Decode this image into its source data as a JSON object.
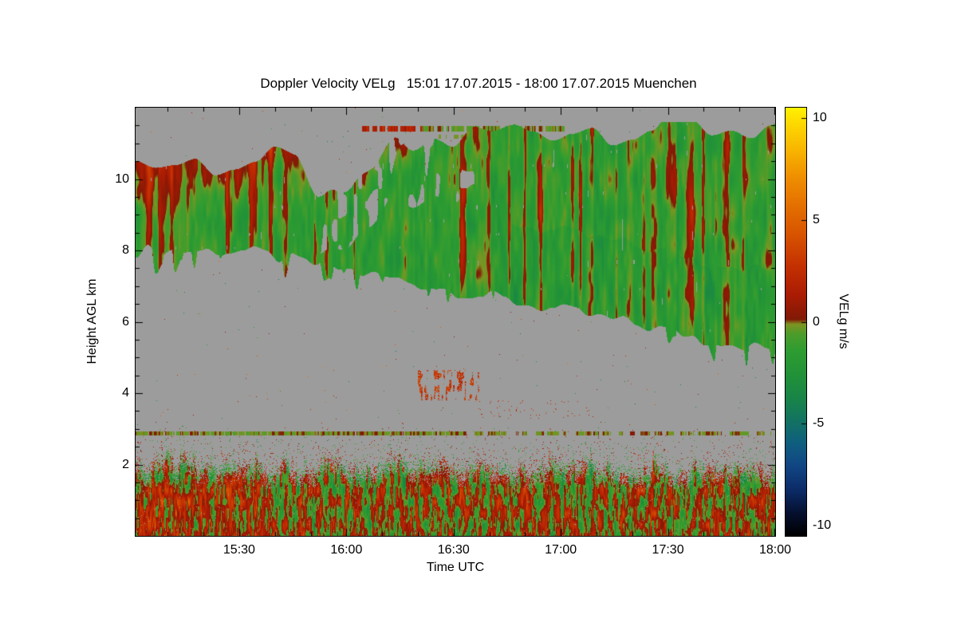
{
  "window": {
    "background": "#ffffff"
  },
  "chart_data": {
    "type": "heatmap",
    "title": "Doppler Velocity VELg   15:01 17.07.2015 - 18:00 17.07.2015 Muenchen",
    "site": "Muenchen",
    "date": "17.07.2015",
    "time_start": "15:01",
    "time_end": "18:00",
    "xlabel": "Time UTC",
    "ylabel": "Height AGL km",
    "x_start_min": 901,
    "x_end_min": 1080,
    "x_ticks": [
      {
        "label": "15:30",
        "minutes": 930
      },
      {
        "label": "16:00",
        "minutes": 960
      },
      {
        "label": "16:30",
        "minutes": 990
      },
      {
        "label": "17:00",
        "minutes": 1020
      },
      {
        "label": "17:30",
        "minutes": 1050
      },
      {
        "label": "18:00",
        "minutes": 1080
      }
    ],
    "y_range": [
      0,
      12
    ],
    "y_ticks": [
      2,
      4,
      6,
      8,
      10
    ],
    "no_data_color": "#9c9c9c",
    "colorbar": {
      "label": "VELg m/s",
      "range": [
        -10.5,
        10.5
      ],
      "ticks": [
        10,
        5,
        0,
        -5,
        -10
      ],
      "stops": [
        [
          -10.5,
          "#000000"
        ],
        [
          -9.4,
          "#05102e"
        ],
        [
          -8.3,
          "#0b2a66"
        ],
        [
          -7.1,
          "#114583"
        ],
        [
          -6.0,
          "#0f5d80"
        ],
        [
          -4.9,
          "#127263"
        ],
        [
          -3.8,
          "#188449"
        ],
        [
          -2.6,
          "#219238"
        ],
        [
          -1.4,
          "#2e9c31"
        ],
        [
          -0.6,
          "#4d9c2a"
        ],
        [
          -0.12,
          "#7e9422"
        ],
        [
          0.12,
          "#801a06"
        ],
        [
          1.3,
          "#aa1b04"
        ],
        [
          2.7,
          "#c33002"
        ],
        [
          4.2,
          "#d75200"
        ],
        [
          5.8,
          "#e57200"
        ],
        [
          7.2,
          "#f09200"
        ],
        [
          8.6,
          "#f9ba00"
        ],
        [
          9.7,
          "#fdd800"
        ],
        [
          10.5,
          "#fff200"
        ]
      ]
    },
    "features": {
      "cloud_band": {
        "description": "Descending mid/upper-level cloud layer; mostly weak negative Doppler velocity (green, about -1 to -2 m/s) with embedded positive streaks (red/orange, +1 to +4 m/s), stronger positive patches near cloud top on the left side",
        "base_km_start": 8.0,
        "base_km_end": 5.2,
        "top_km_start": 10.45,
        "top_km_end": 11.6,
        "mean_velocity_ms": -1.5,
        "streak_velocity_ms": 2.5
      },
      "boundary_layer": {
        "description": "Noisy aerosol/boundary-layer returns below about 2.2 km with mixed velocities (-3 to +3 m/s); reddish (positive) dominance near the ground, especially before 15:35",
        "top_km": 2.2
      },
      "thin_line_km": 2.88,
      "mid_level_patch": {
        "description": "Small cluster of positive velocities (+2 to +4 m/s)",
        "time_range_min": [
          981,
          996
        ],
        "height_km": [
          3.8,
          4.5
        ]
      },
      "detached_streak": {
        "description": "Thin broken cloud streak above main layer; positive (red) on its left part, near-zero (olive/green) on its right part",
        "height_km": 11.42,
        "time_range_min": [
          964,
          1021
        ]
      }
    }
  }
}
